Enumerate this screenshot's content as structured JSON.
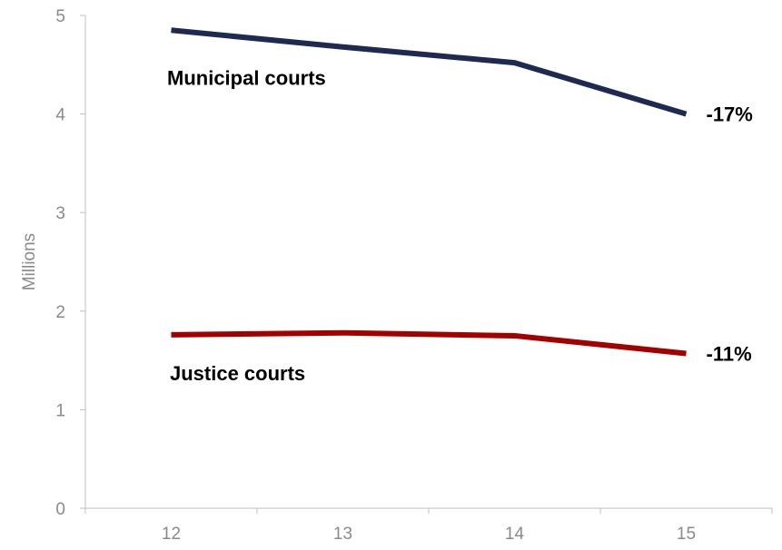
{
  "chart_data": {
    "type": "line",
    "title": "",
    "xlabel": "",
    "ylabel": "Millions",
    "categories": [
      "12",
      "13",
      "14",
      "15"
    ],
    "ylim": [
      0,
      5
    ],
    "yticks": [
      "0",
      "1",
      "2",
      "3",
      "4",
      "5"
    ],
    "grid": false,
    "series": [
      {
        "name": "Municipal courts",
        "values": [
          4.85,
          4.68,
          4.52,
          4.0
        ],
        "color": "#1f2a52",
        "end_label": "-17%"
      },
      {
        "name": "Justice courts",
        "values": [
          1.76,
          1.78,
          1.75,
          1.57
        ],
        "color": "#a30000",
        "end_label": "-11%"
      }
    ]
  }
}
